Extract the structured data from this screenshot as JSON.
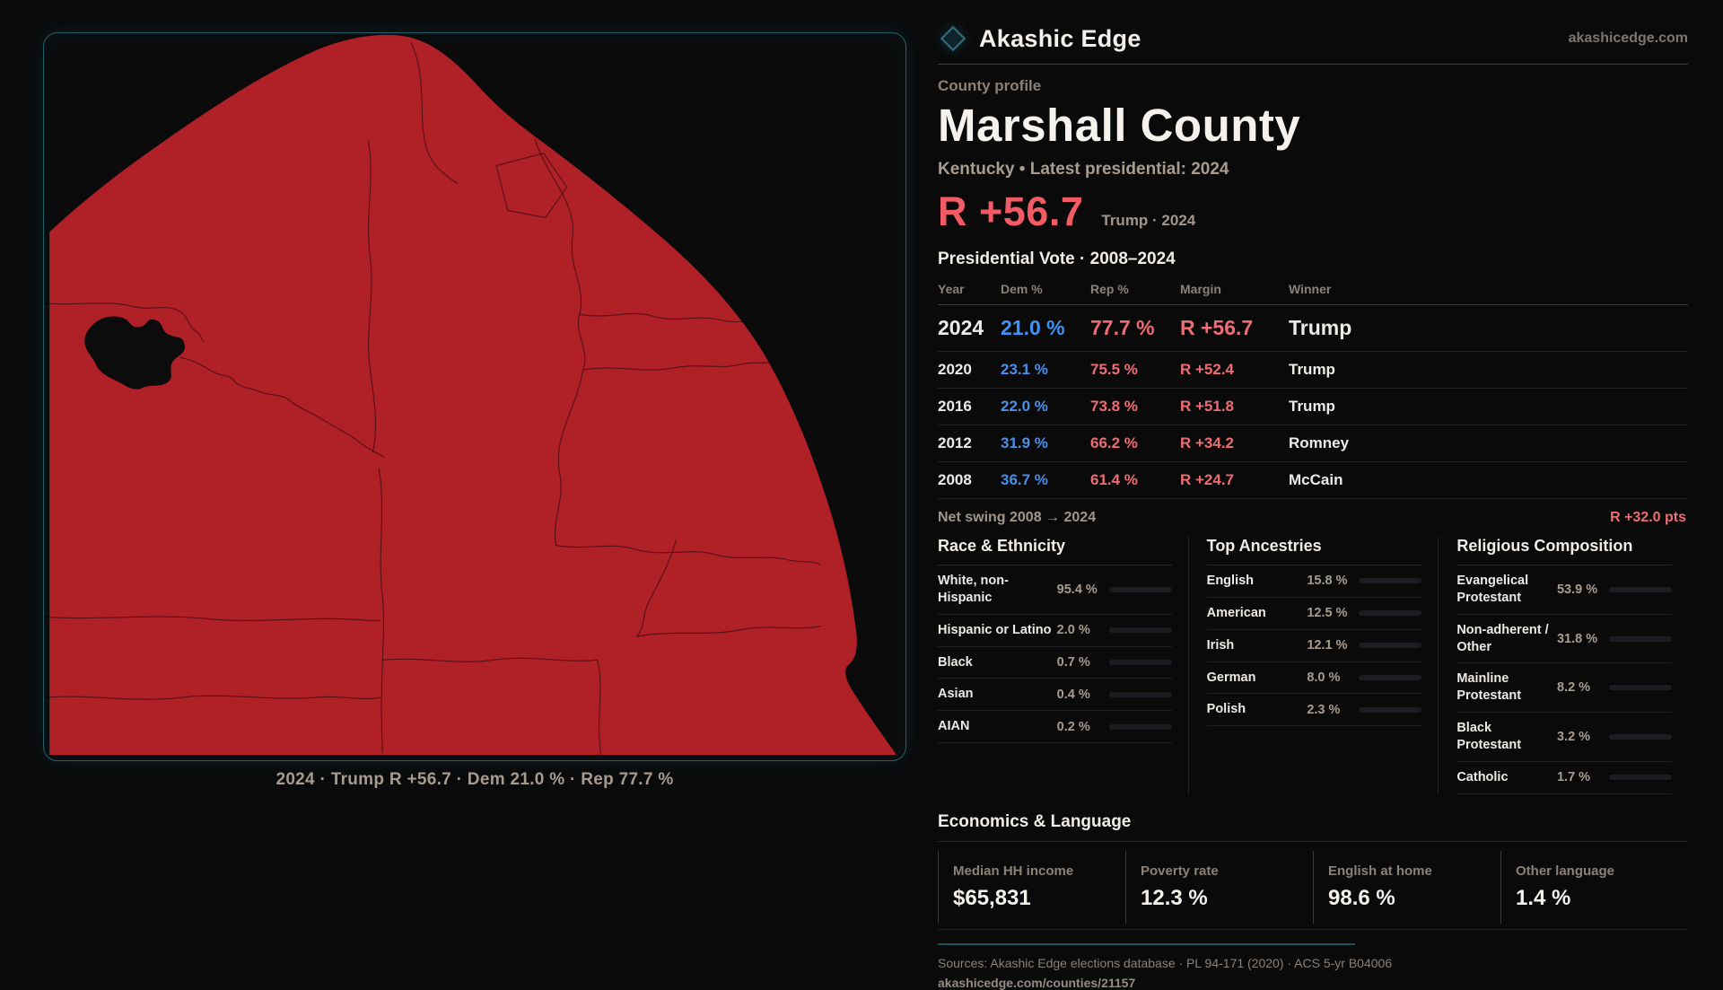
{
  "brand": {
    "name": "Akashic Edge",
    "domain": "akashicedge.com",
    "accent_teal": "#23606e"
  },
  "profile": {
    "kicker": "County profile",
    "title": "Marshall County",
    "meta": "Kentucky • Latest presidential: 2024",
    "headline_margin": "R +56.7",
    "headline_note": "Trump · 2024",
    "margin_color": "#f25a66"
  },
  "vote_table": {
    "title": "Presidential Vote · 2008–2024",
    "headers": [
      "Year",
      "Dem %",
      "Rep %",
      "Margin",
      "Winner"
    ],
    "rows": [
      {
        "year": "2024",
        "dem": "21.0 %",
        "rep": "77.7 %",
        "margin": "R +56.7",
        "winner": "Trump"
      },
      {
        "year": "2020",
        "dem": "23.1 %",
        "rep": "75.5 %",
        "margin": "R +52.4",
        "winner": "Trump"
      },
      {
        "year": "2016",
        "dem": "22.0 %",
        "rep": "73.8 %",
        "margin": "R +51.8",
        "winner": "Trump"
      },
      {
        "year": "2012",
        "dem": "31.9 %",
        "rep": "66.2 %",
        "margin": "R +34.2",
        "winner": "Romney"
      },
      {
        "year": "2008",
        "dem": "36.7 %",
        "rep": "61.4 %",
        "margin": "R +24.7",
        "winner": "McCain"
      }
    ],
    "dem_color": "#4a90e8",
    "rep_color": "#ee6d72"
  },
  "net_swing": {
    "label": "Net swing 2008 → 2024",
    "value": "R +32.0 pts"
  },
  "race": {
    "title": "Race & Ethnicity",
    "rows": [
      {
        "label": "White, non-Hispanic",
        "value": "95.4 %",
        "pct": 95.4,
        "color": "#aabdd6"
      },
      {
        "label": "Hispanic or Latino",
        "value": "2.0 %",
        "pct": 2.0,
        "color": "#df8e2e"
      },
      {
        "label": "Black",
        "value": "0.7 %",
        "pct": 0.7,
        "color": "#7e66e8"
      },
      {
        "label": "Asian",
        "value": "0.4 %",
        "pct": 0.4,
        "color": "#2fae7e"
      },
      {
        "label": "AIAN",
        "value": "0.2 %",
        "pct": 0.2,
        "color": "#aabdd6"
      }
    ]
  },
  "ancestries": {
    "title": "Top Ancestries",
    "rows": [
      {
        "label": "English",
        "value": "15.8 %",
        "pct": 15.8,
        "color": "#aabdd6"
      },
      {
        "label": "American",
        "value": "12.5 %",
        "pct": 12.5,
        "color": "#aabdd6"
      },
      {
        "label": "Irish",
        "value": "12.1 %",
        "pct": 12.1,
        "color": "#aabdd6"
      },
      {
        "label": "German",
        "value": "8.0 %",
        "pct": 8.0,
        "color": "#aabdd6"
      },
      {
        "label": "Polish",
        "value": "2.3 %",
        "pct": 2.3,
        "color": "#d8dde6"
      }
    ]
  },
  "religion": {
    "title": "Religious Composition",
    "rows": [
      {
        "label": "Evangelical Protestant",
        "value": "53.9 %",
        "pct": 53.9,
        "color": "#e0636b"
      },
      {
        "label": "Non-adherent / Other",
        "value": "31.8 %",
        "pct": 31.8,
        "color": "#6f7887"
      },
      {
        "label": "Mainline Protestant",
        "value": "8.2 %",
        "pct": 8.2,
        "color": "#4f93e8"
      },
      {
        "label": "Black Protestant",
        "value": "3.2 %",
        "pct": 3.2,
        "color": "#8f6cf0"
      },
      {
        "label": "Catholic",
        "value": "1.7 %",
        "pct": 1.7,
        "color": "#ddb02f"
      }
    ]
  },
  "economics": {
    "title": "Economics & Language",
    "cards": [
      {
        "label": "Median HH income",
        "value": "$65,831"
      },
      {
        "label": "Poverty rate",
        "value": "12.3 %"
      },
      {
        "label": "English at home",
        "value": "98.6 %"
      },
      {
        "label": "Other language",
        "value": "1.4 %"
      }
    ]
  },
  "footer": {
    "sources": "Sources: Akashic Edge elections database · PL 94-171 (2020) · ACS 5-yr B04006",
    "permalink": "akashicedge.com/counties/21157"
  },
  "map": {
    "caption": "2024 · Trump R +56.7 · Dem 21.0 % · Rep 77.7 %",
    "county_fill": "#b02127"
  }
}
